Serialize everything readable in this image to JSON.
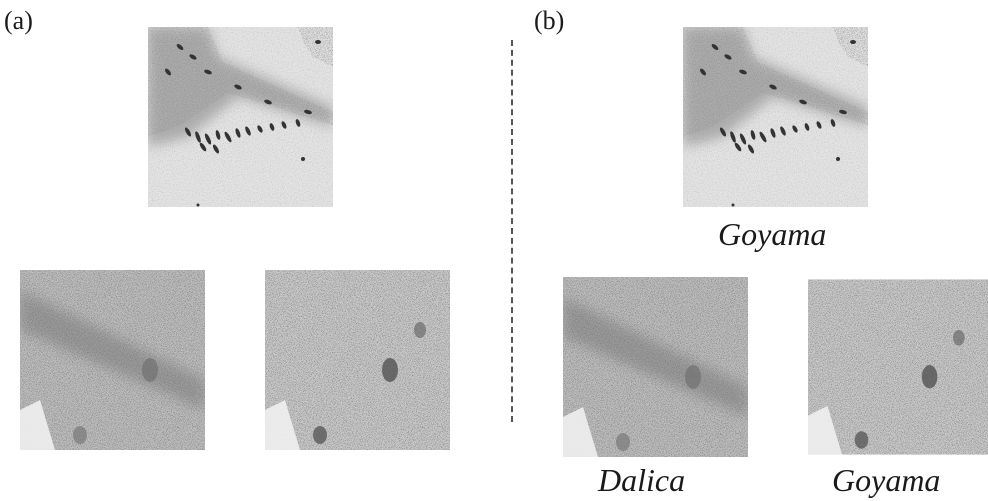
{
  "panels": {
    "a": {
      "label": "(a)",
      "top_image": {
        "caption": ""
      },
      "bottom_left_image": {
        "caption": ""
      },
      "bottom_right_image": {
        "caption": ""
      }
    },
    "b": {
      "label": "(b)",
      "top_image": {
        "caption": "Goyama"
      },
      "bottom_left_image": {
        "caption": "Dalica"
      },
      "bottom_right_image": {
        "caption": "Goyama"
      }
    }
  }
}
